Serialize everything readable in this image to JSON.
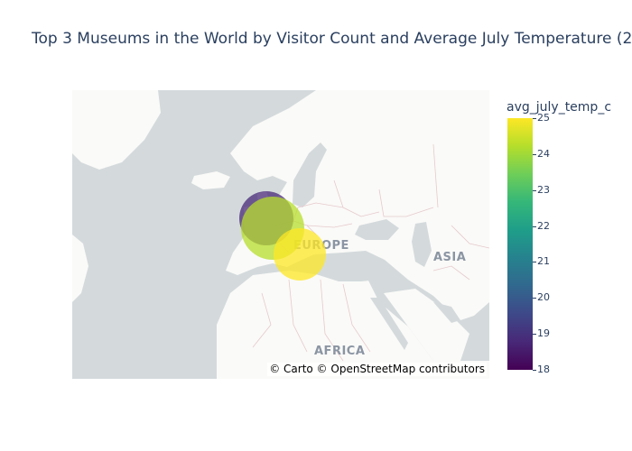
{
  "title": "Top 3 Museums in the World by Visitor Count and Average July Temperature (2",
  "map": {
    "labels": {
      "europe": "EUROPE",
      "asia": "ASIA",
      "africa": "AFRICA"
    },
    "attribution": "© Carto © OpenStreetMap contributors",
    "colors": {
      "water": "#d4dadc",
      "land": "#fafaf8",
      "border": "#e6c9cd",
      "label": "#8b95a3"
    }
  },
  "colorbar": {
    "title": "avg_july_temp_c",
    "ticks": [
      "25",
      "24",
      "23",
      "22",
      "21",
      "20",
      "19",
      "18"
    ],
    "range": [
      18,
      25
    ],
    "colorscale": "Viridis"
  },
  "chart_data": {
    "type": "scatter",
    "points": [
      {
        "avg_july_temp_c": 19,
        "color": "#482878"
      },
      {
        "avg_july_temp_c": 24,
        "color": "#b5de2b"
      },
      {
        "avg_july_temp_c": 25,
        "color": "#fde725"
      }
    ],
    "colorbar_range": [
      18,
      25
    ]
  }
}
